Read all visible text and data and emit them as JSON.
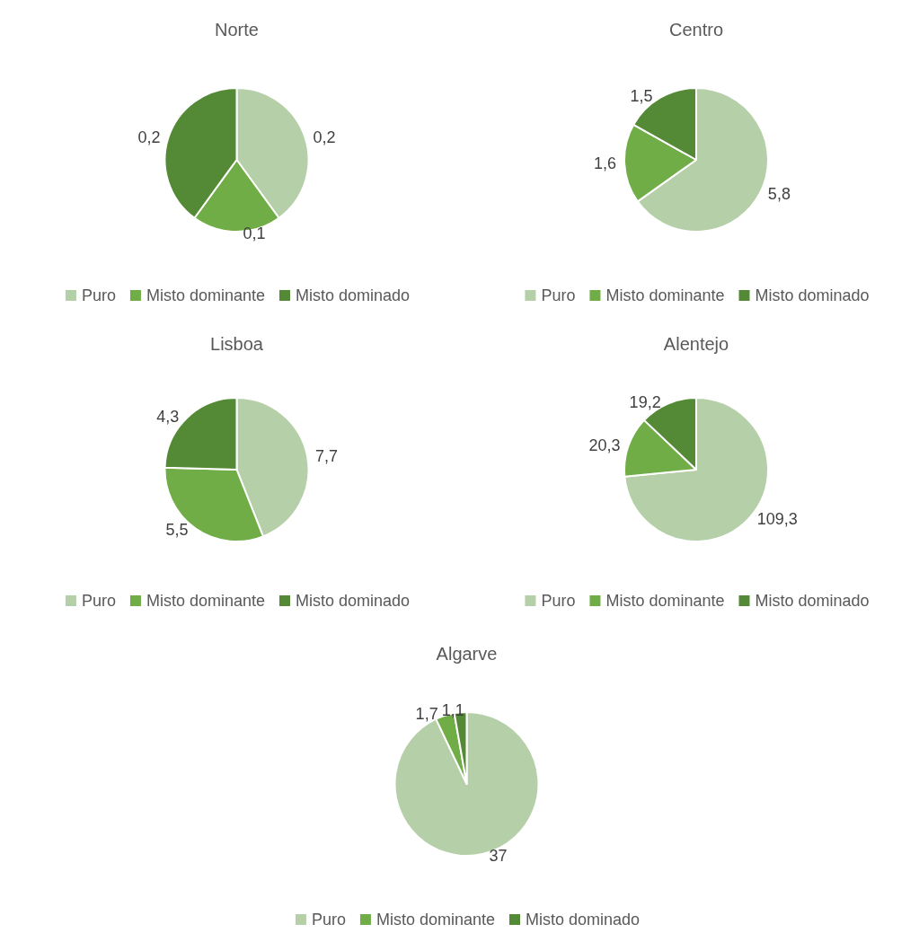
{
  "chart_data": [
    {
      "type": "pie",
      "title": "Norte",
      "categories": [
        "Puro",
        "Misto dominante",
        "Misto dominado"
      ],
      "values": [
        0.2,
        0.1,
        0.2
      ],
      "value_labels": [
        "0,2",
        "0,1",
        "0,2"
      ],
      "colors": [
        "#b5cfa8",
        "#70ad47",
        "#548a35"
      ],
      "legend": "bottom"
    },
    {
      "type": "pie",
      "title": "Centro",
      "categories": [
        "Puro",
        "Misto dominante",
        "Misto dominado"
      ],
      "values": [
        5.8,
        1.6,
        1.5
      ],
      "value_labels": [
        "5,8",
        "1,6",
        "1,5"
      ],
      "colors": [
        "#b5cfa8",
        "#70ad47",
        "#548a35"
      ],
      "legend": "bottom"
    },
    {
      "type": "pie",
      "title": "Lisboa",
      "categories": [
        "Puro",
        "Misto dominante",
        "Misto dominado"
      ],
      "values": [
        7.7,
        5.5,
        4.3
      ],
      "value_labels": [
        "7,7",
        "5,5",
        "4,3"
      ],
      "colors": [
        "#b5cfa8",
        "#70ad47",
        "#548a35"
      ],
      "legend": "bottom"
    },
    {
      "type": "pie",
      "title": "Alentejo",
      "categories": [
        "Puro",
        "Misto dominante",
        "Misto dominado"
      ],
      "values": [
        109.3,
        20.3,
        19.2
      ],
      "value_labels": [
        "109,3",
        "20,3",
        "19,2"
      ],
      "colors": [
        "#b5cfa8",
        "#70ad47",
        "#548a35"
      ],
      "legend": "bottom"
    },
    {
      "type": "pie",
      "title": "Algarve",
      "categories": [
        "Puro",
        "Misto dominante",
        "Misto dominado"
      ],
      "values": [
        37,
        1.7,
        1.1
      ],
      "value_labels": [
        "37",
        "1,7",
        "1,1"
      ],
      "colors": [
        "#b5cfa8",
        "#70ad47",
        "#548a35"
      ],
      "legend": "bottom"
    }
  ]
}
